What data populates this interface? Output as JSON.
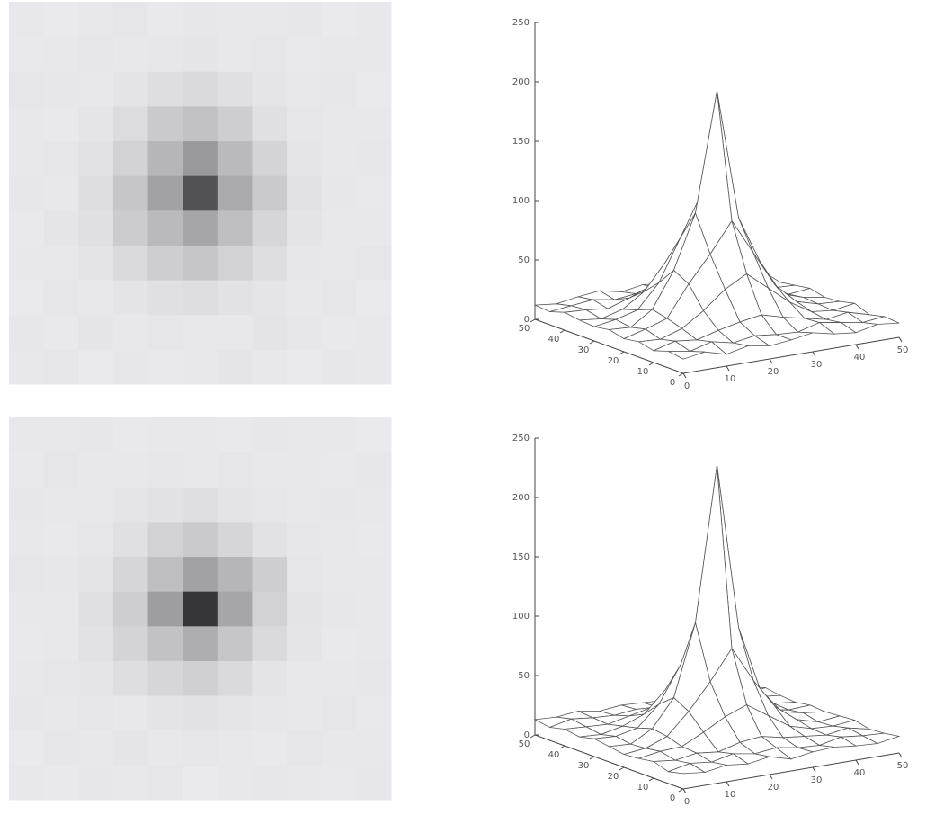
{
  "chart_data": [
    {
      "type": "surface",
      "x": [
        0,
        5,
        10,
        15,
        20,
        25,
        30,
        35,
        40,
        45,
        50
      ],
      "y": [
        0,
        5,
        10,
        15,
        20,
        25,
        30,
        35,
        40,
        45,
        50
      ],
      "values": [
        [
          12,
          15,
          10,
          14,
          11,
          13,
          16,
          12,
          10,
          14,
          12
        ],
        [
          14,
          11,
          16,
          12,
          15,
          13,
          12,
          17,
          14,
          11,
          13
        ],
        [
          10,
          15,
          13,
          18,
          22,
          25,
          20,
          16,
          12,
          15,
          10
        ],
        [
          13,
          12,
          18,
          30,
          45,
          55,
          40,
          25,
          14,
          12,
          15
        ],
        [
          11,
          16,
          22,
          48,
          70,
          95,
          65,
          35,
          18,
          13,
          12
        ],
        [
          14,
          13,
          25,
          55,
          100,
          200,
          90,
          50,
          20,
          14,
          11
        ],
        [
          12,
          15,
          20,
          40,
          75,
          110,
          70,
          38,
          16,
          12,
          14
        ],
        [
          13,
          11,
          16,
          28,
          50,
          60,
          45,
          22,
          15,
          13,
          12
        ],
        [
          15,
          14,
          12,
          18,
          25,
          30,
          22,
          16,
          12,
          14,
          10
        ],
        [
          11,
          13,
          15,
          12,
          14,
          16,
          13,
          15,
          11,
          12,
          13
        ],
        [
          12,
          10,
          13,
          15,
          11,
          14,
          12,
          13,
          14,
          10,
          12
        ]
      ],
      "xlim": [
        0,
        50
      ],
      "ylim": [
        0,
        50
      ],
      "zlim": [
        0,
        250
      ],
      "xticks": [
        0,
        10,
        20,
        30,
        40,
        50
      ],
      "yticks": [
        0,
        10,
        20,
        30,
        40,
        50
      ],
      "zticks": [
        0,
        50,
        100,
        150,
        200,
        250
      ]
    },
    {
      "type": "surface",
      "x": [
        0,
        5,
        10,
        15,
        20,
        25,
        30,
        35,
        40,
        45,
        50
      ],
      "y": [
        0,
        5,
        10,
        15,
        20,
        25,
        30,
        35,
        40,
        45,
        50
      ],
      "values": [
        [
          13,
          11,
          14,
          12,
          15,
          10,
          13,
          14,
          12,
          11,
          14
        ],
        [
          10,
          14,
          12,
          16,
          13,
          15,
          12,
          11,
          15,
          13,
          12
        ],
        [
          14,
          12,
          15,
          13,
          18,
          20,
          16,
          14,
          12,
          15,
          11
        ],
        [
          12,
          15,
          16,
          25,
          35,
          42,
          30,
          18,
          13,
          12,
          14
        ],
        [
          11,
          13,
          20,
          38,
          60,
          85,
          55,
          30,
          16,
          11,
          13
        ],
        [
          13,
          12,
          22,
          45,
          105,
          235,
          95,
          40,
          18,
          14,
          12
        ],
        [
          15,
          14,
          18,
          35,
          65,
          100,
          75,
          45,
          15,
          12,
          13
        ],
        [
          12,
          11,
          15,
          22,
          40,
          50,
          35,
          20,
          14,
          13,
          11
        ],
        [
          14,
          13,
          12,
          16,
          20,
          24,
          18,
          15,
          12,
          14,
          12
        ],
        [
          11,
          15,
          13,
          12,
          14,
          13,
          15,
          12,
          13,
          11,
          14
        ],
        [
          13,
          12,
          14,
          11,
          13,
          12,
          11,
          14,
          12,
          13,
          10
        ]
      ],
      "xlim": [
        0,
        50
      ],
      "ylim": [
        0,
        50
      ],
      "zlim": [
        0,
        250
      ],
      "xticks": [
        0,
        10,
        20,
        30,
        40,
        50
      ],
      "yticks": [
        0,
        10,
        20,
        30,
        40,
        50
      ],
      "zticks": [
        0,
        50,
        100,
        150,
        200,
        250
      ]
    }
  ]
}
